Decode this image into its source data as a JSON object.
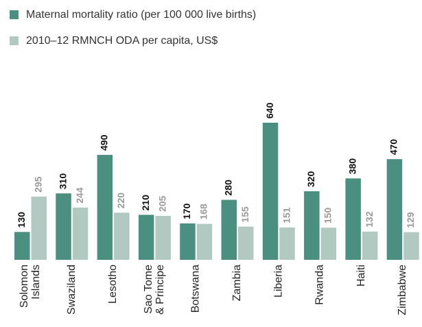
{
  "chart_data": {
    "type": "bar",
    "categories": [
      "Solomon\nIslands",
      "Swaziland",
      "Lesotho",
      "Sao Tome\n& Principe",
      "Botswana",
      "Zambia",
      "Liberia",
      "Rwanda",
      "Haiti",
      "Zimbabwe"
    ],
    "series": [
      {
        "name": "Maternal mortality ratio (per 100 000 live births)",
        "color": "#4a8f80",
        "values": [
          130,
          310,
          490,
          210,
          170,
          280,
          640,
          320,
          380,
          470
        ]
      },
      {
        "name": "2010–12 RMNCH ODA per capita, US$",
        "color": "#b2c9c1",
        "values": [
          295,
          244,
          220,
          205,
          168,
          155,
          151,
          150,
          132,
          129
        ]
      }
    ]
  }
}
